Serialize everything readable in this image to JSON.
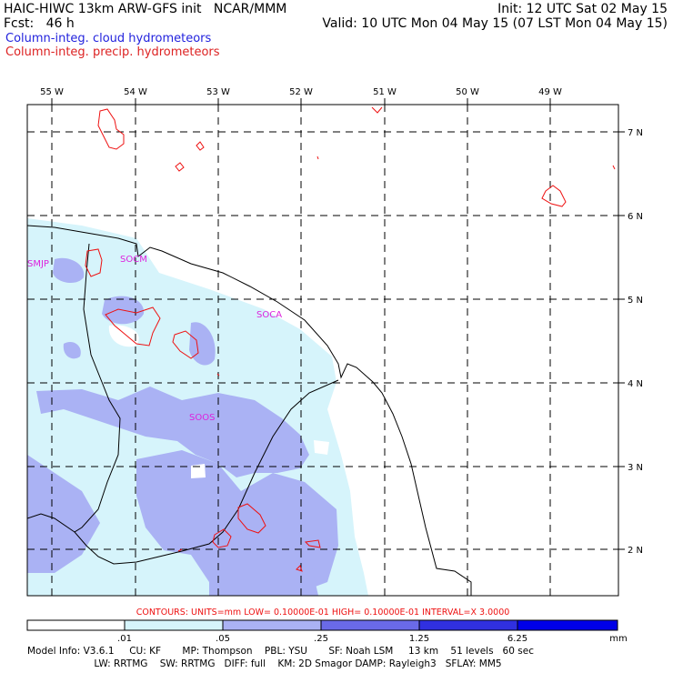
{
  "header": {
    "model_title": "HAIC-HIWC 13km ARW-GFS init   NCAR/MMM",
    "init": "Init: 12 UTC Sat 02 May 15",
    "fcst": "Fcst:   46 h",
    "valid": "Valid: 10 UTC Mon 04 May 15 (07 LST Mon 04 May 15)",
    "field1": "Column-integ. cloud hydrometeors",
    "field2": "Column-integ. precip. hydrometeors"
  },
  "colors": {
    "field1": "#2222dd",
    "field2": "#dd2222",
    "shade1": "#d6f4fb",
    "shade2": "#aab2f4",
    "shade3": "#6a6ae8",
    "shade4": "#0000e8",
    "label": "#dd22dd",
    "contour": "#ee1111"
  },
  "map": {
    "lon_labels": [
      "55 W",
      "54 W",
      "53 W",
      "52 W",
      "51 W",
      "50 W",
      "49 W"
    ],
    "lat_labels": [
      "7 N",
      "6 N",
      "5 N",
      "4 N",
      "3 N",
      "2 N"
    ],
    "stations": [
      "SMJP",
      "SOCM",
      "SOCA",
      "SOOS"
    ]
  },
  "contours_line": "CONTOURS:  UNITS=mm   LOW= 0.10000E-01   HIGH= 0.10000E-01   INTERVAL=X  3.0000",
  "colorbar": {
    "ticks": [
      ".01",
      ".05",
      ".25",
      "1.25",
      "6.25"
    ],
    "unit": "mm"
  },
  "model_info": {
    "line1": "Model Info: V3.6.1     CU: KF       MP: Thompson    PBL: YSU       SF: Noah LSM     13 km    51 levels   60 sec",
    "line2": "                      LW: RRTMG    SW: RRTMG   DIFF: full    KM: 2D Smagor DAMP: Rayleigh3   SFLAY: MM5"
  }
}
